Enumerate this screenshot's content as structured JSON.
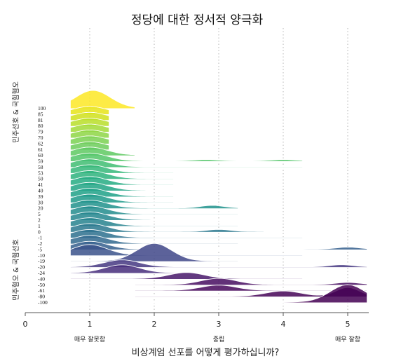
{
  "chart_data": {
    "type": "area",
    "subtype": "ridgeline",
    "title": "정당에 대한 정서적 양극화",
    "xlabel": "비상계엄 선포를 어떻게 평가하십니까?",
    "xlim": [
      0,
      5.3
    ],
    "x_ticks": [
      0,
      1,
      2,
      3,
      4,
      5
    ],
    "x_anchor_labels": [
      {
        "x": 1,
        "label": "매우 잘못함"
      },
      {
        "x": 3,
        "label": "중립"
      },
      {
        "x": 5,
        "label": "매우 잘함"
      }
    ],
    "vertical_gridlines": [
      1,
      2,
      3,
      4,
      5
    ],
    "group_labels": [
      "민주선호 & 국힘혐오",
      "민주혐오 & 국힘선호"
    ],
    "color_scale": "viridis, from dark purple (−100) to yellow (100)",
    "rows": [
      {
        "label": "100",
        "fill": "#fde725",
        "x": [
          0.7,
          1.7
        ],
        "peak": 1.05,
        "h": 1.0
      },
      {
        "label": "85",
        "fill": "#e6e419",
        "x": [
          0.7,
          1.3
        ],
        "peak": 1.0,
        "h": 0.42
      },
      {
        "label": "81",
        "fill": "#d0e11c",
        "x": [
          0.7,
          1.3
        ],
        "peak": 1.0,
        "h": 0.42
      },
      {
        "label": "80",
        "fill": "#b8de29",
        "x": [
          0.7,
          1.3
        ],
        "peak": 1.0,
        "h": 0.42
      },
      {
        "label": "79",
        "fill": "#a2da37",
        "x": [
          0.7,
          1.3
        ],
        "peak": 1.0,
        "h": 0.42
      },
      {
        "label": "70",
        "fill": "#8ed645",
        "x": [
          0.7,
          1.3
        ],
        "peak": 1.0,
        "h": 0.42
      },
      {
        "label": "62",
        "fill": "#7ad151",
        "x": [
          0.7,
          1.3
        ],
        "peak": 1.0,
        "h": 0.42
      },
      {
        "label": "61",
        "fill": "#6ccd5a",
        "x": [
          0.7,
          1.3
        ],
        "peak": 1.0,
        "h": 0.42
      },
      {
        "label": "60",
        "fill": "#5ec962",
        "x": [
          0.7,
          1.7
        ],
        "peak": 1.0,
        "h": 0.45
      },
      {
        "label": "59",
        "fill": "#52c569",
        "x": [
          0.7,
          4.3
        ],
        "peak": 1.0,
        "h": 0.45,
        "bumps": [
          [
            2.8,
            0.08
          ],
          [
            4.0,
            0.08
          ]
        ]
      },
      {
        "label": "58",
        "fill": "#40bd72",
        "x": [
          0.7,
          4.3
        ],
        "peak": 1.0,
        "h": 0.45
      },
      {
        "label": "53",
        "fill": "#35b779",
        "x": [
          0.7,
          2.3
        ],
        "peak": 1.0,
        "h": 0.45
      },
      {
        "label": "50",
        "fill": "#2eb37c",
        "x": [
          0.7,
          2.3
        ],
        "peak": 1.0,
        "h": 0.45
      },
      {
        "label": "41",
        "fill": "#25ac82",
        "x": [
          0.7,
          2.3
        ],
        "peak": 1.0,
        "h": 0.45
      },
      {
        "label": "40",
        "fill": "#21a585",
        "x": [
          0.7,
          2.3
        ],
        "peak": 1.0,
        "h": 0.45
      },
      {
        "label": "39",
        "fill": "#1fa187",
        "x": [
          0.7,
          2.3
        ],
        "peak": 1.0,
        "h": 0.45
      },
      {
        "label": "30",
        "fill": "#1f9a8a",
        "x": [
          0.7,
          2.3
        ],
        "peak": 1.0,
        "h": 0.45
      },
      {
        "label": "20",
        "fill": "#20928c",
        "x": [
          0.7,
          3.3
        ],
        "peak": 1.0,
        "h": 0.45,
        "bumps": [
          [
            2.9,
            0.15
          ]
        ]
      },
      {
        "label": "5",
        "fill": "#228c8d",
        "x": [
          0.7,
          3.3
        ],
        "peak": 1.0,
        "h": 0.45
      },
      {
        "label": "2",
        "fill": "#24868e",
        "x": [
          0.7,
          3.3
        ],
        "peak": 1.0,
        "h": 0.45
      },
      {
        "label": "1",
        "fill": "#26828e",
        "x": [
          0.7,
          3.3
        ],
        "peak": 1.0,
        "h": 0.45
      },
      {
        "label": "0",
        "fill": "#2a788e",
        "x": [
          0.7,
          3.7
        ],
        "peak": 1.0,
        "h": 0.45,
        "bumps": [
          [
            3.0,
            0.12
          ]
        ]
      },
      {
        "label": "-1",
        "fill": "#2d708e",
        "x": [
          0.7,
          4.3
        ],
        "peak": 1.0,
        "h": 0.45
      },
      {
        "label": "-2",
        "fill": "#31688e",
        "x": [
          0.7,
          3.3
        ],
        "peak": 1.0,
        "h": 0.45
      },
      {
        "label": "-5",
        "fill": "#355f8d",
        "x": [
          0.7,
          5.3
        ],
        "peak": 1.0,
        "h": 0.45,
        "bumps": [
          [
            5.0,
            0.12
          ]
        ]
      },
      {
        "label": "-10",
        "fill": "#3b528b",
        "x": [
          0.7,
          4.3
        ],
        "peak": 1.0,
        "h": 0.6
      },
      {
        "label": "-19",
        "fill": "#404688",
        "x": [
          0.7,
          3.3
        ],
        "peak": 2.0,
        "h": 1.0
      },
      {
        "label": "-20",
        "fill": "#453781",
        "x": [
          0.7,
          5.3
        ],
        "peak": 1.5,
        "h": 0.4,
        "bumps": [
          [
            4.9,
            0.12
          ]
        ]
      },
      {
        "label": "-24",
        "fill": "#472d7b",
        "x": [
          0.7,
          3.3
        ],
        "peak": 1.5,
        "h": 0.45
      },
      {
        "label": "-40",
        "fill": "#48186a",
        "x": [
          0.7,
          4.3
        ],
        "peak": 2.5,
        "h": 0.35
      },
      {
        "label": "-50",
        "fill": "#470d60",
        "x": [
          1.7,
          5.3
        ],
        "peak": 3.0,
        "h": 0.35,
        "bumps": [
          [
            5.0,
            0.12
          ]
        ]
      },
      {
        "label": "-61",
        "fill": "#46085c",
        "x": [
          1.7,
          5.3
        ],
        "peak": 3.0,
        "h": 0.3
      },
      {
        "label": "-80",
        "fill": "#450457",
        "x": [
          1.7,
          5.3
        ],
        "peak": 4.0,
        "h": 0.3,
        "bumps": [
          [
            5.0,
            0.5
          ]
        ]
      },
      {
        "label": "-100",
        "fill": "#440154",
        "x": [
          0.7,
          5.3
        ],
        "peak": 5.0,
        "h": 1.0
      }
    ]
  }
}
